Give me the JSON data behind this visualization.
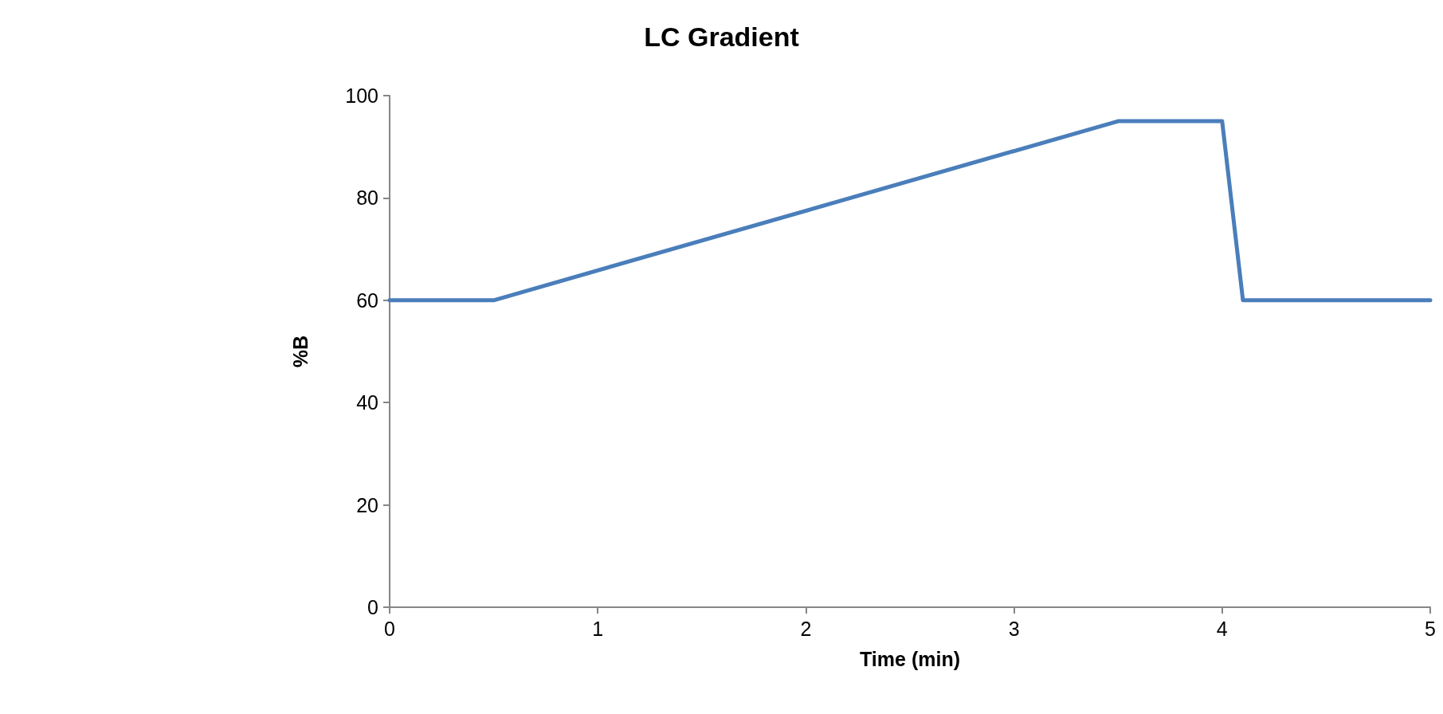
{
  "chart_data": {
    "type": "line",
    "title": "LC Gradient",
    "xlabel": "Time (min)",
    "ylabel": "%B",
    "x": [
      0,
      0.5,
      3.5,
      4,
      4.1,
      5
    ],
    "series": [
      {
        "color": "#4a7ebb",
        "values": [
          60,
          60,
          95,
          95,
          60,
          60
        ]
      }
    ],
    "xlim": [
      0,
      5
    ],
    "xticks": [
      0,
      1,
      2,
      3,
      4,
      5
    ],
    "ylim": [
      0,
      100
    ],
    "yticks": [
      0,
      20,
      40,
      60,
      80,
      100
    ],
    "grid": false,
    "marker": "none",
    "line_style": "solid"
  }
}
